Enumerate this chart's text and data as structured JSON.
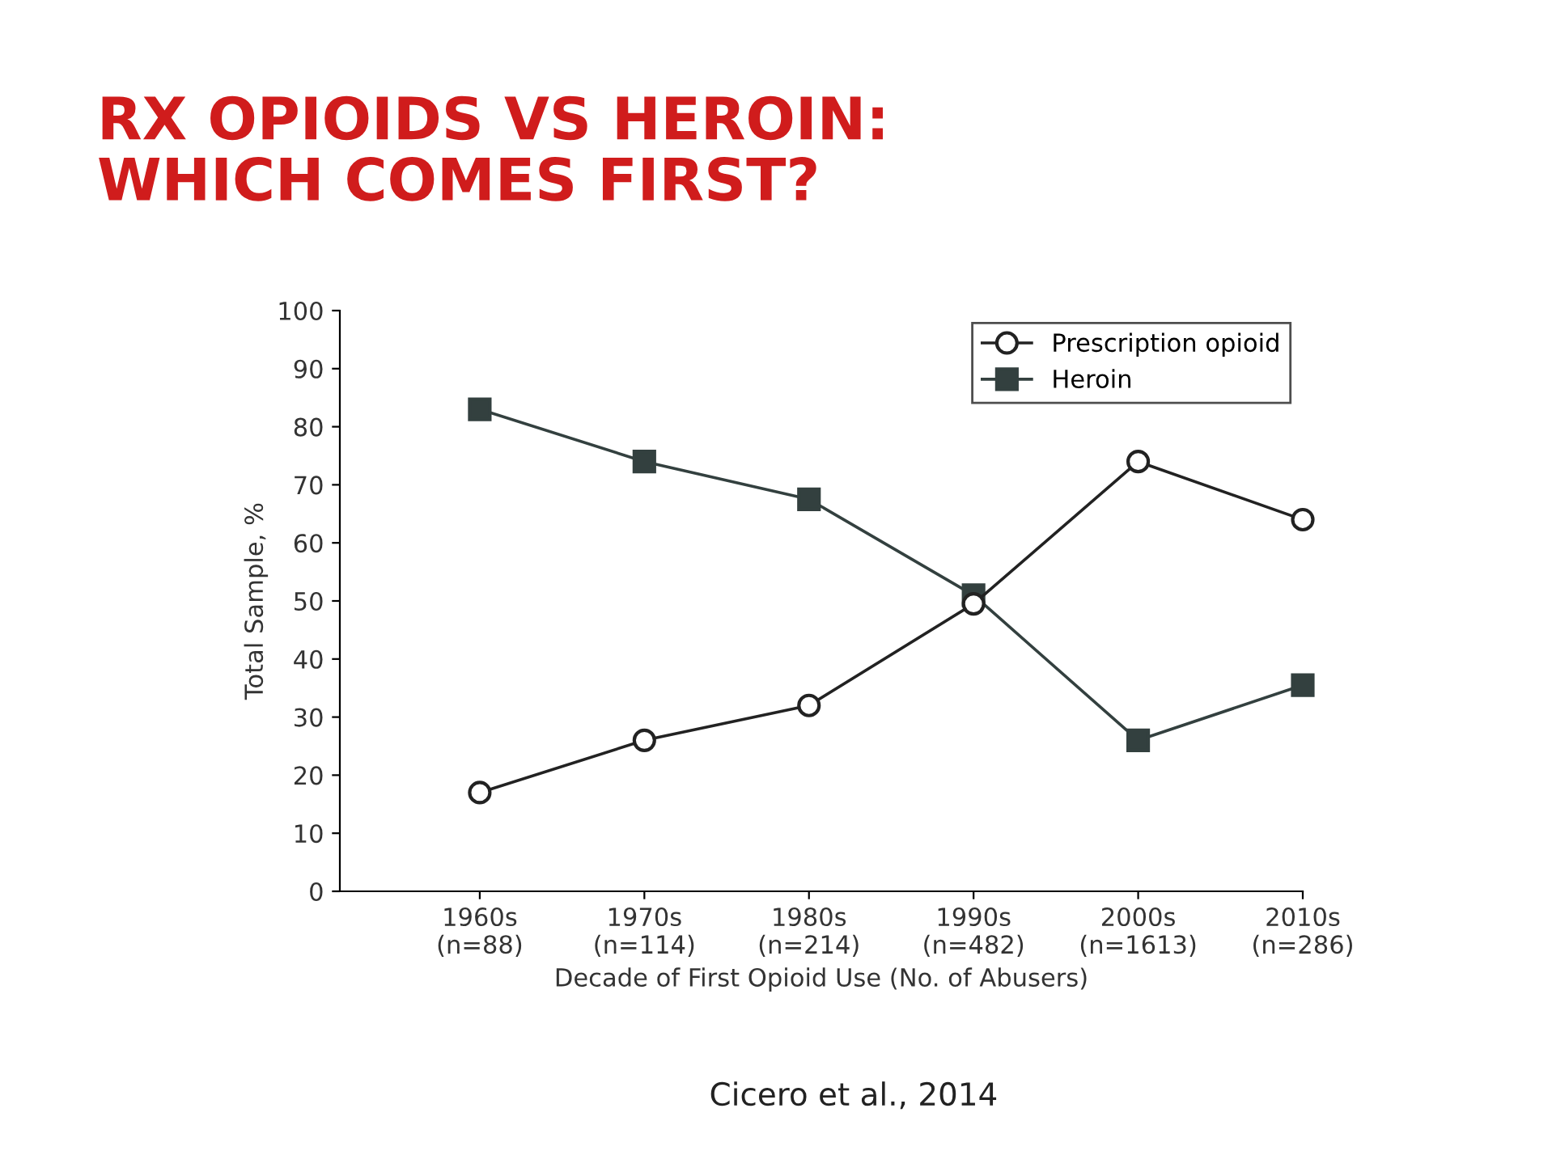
{
  "chart_data": {
    "type": "line",
    "title": "RX OPIOIDS VS HEROIN:\nWHICH COMES FIRST?",
    "xlabel": "Decade of First Opioid Use (No. of Abusers)",
    "ylabel": "Total Sample, %",
    "categories": [
      "1960s\n(n=88)",
      "1970s\n(n=114)",
      "1980s\n(n=214)",
      "1990s\n(n=482)",
      "2000s\n(n=1613)",
      "2010s\n(n=286)"
    ],
    "series": [
      {
        "name": "Prescription opioid",
        "color": "#222222",
        "marker": "circle",
        "values": [
          17,
          26,
          32,
          49.5,
          74,
          64
        ]
      },
      {
        "name": "Heroin",
        "color": "#33403f",
        "marker": "square",
        "values": [
          83,
          74,
          67.5,
          51,
          26,
          35.5
        ]
      }
    ],
    "ylim": [
      0,
      100
    ],
    "yticks": [
      0,
      10,
      20,
      30,
      40,
      50,
      60,
      70,
      80,
      90,
      100
    ],
    "grid": false,
    "legend": "top right",
    "line_style": "solid",
    "annotations": [
      "Cicero et al., 2014"
    ]
  }
}
